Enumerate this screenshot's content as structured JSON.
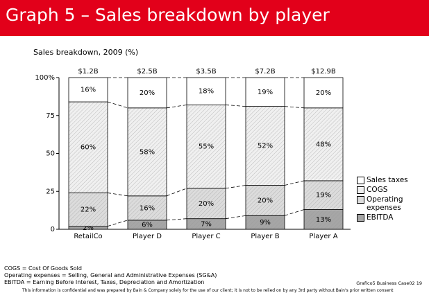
{
  "header": {
    "title": "Graph 5 – Sales breakdown by player"
  },
  "chart_data": {
    "type": "stacked_bar",
    "title": "Sales breakdown, 2009 (%)",
    "categories": [
      "RetailCo",
      "Player D",
      "Player C",
      "Player B",
      "Player A"
    ],
    "column_labels": [
      "$1.2B",
      "$2.5B",
      "$3.5B",
      "$7.2B",
      "$12.9B"
    ],
    "ylim": [
      0,
      100
    ],
    "yticks": [
      0,
      25,
      50,
      75,
      {
        "value": 100,
        "label": "100%"
      }
    ],
    "series": [
      {
        "name": "EBITDA",
        "color": "#a6a6a6",
        "values": [
          2,
          6,
          7,
          9,
          13
        ],
        "value_labels": [
          "2%",
          "6%",
          "7%",
          "9%",
          "13%"
        ]
      },
      {
        "name": "Operating expenses",
        "color": "#dcdcdc",
        "values": [
          22,
          16,
          20,
          20,
          19
        ],
        "value_labels": [
          "22%",
          "16%",
          "20%",
          "20%",
          "19%"
        ]
      },
      {
        "name": "COGS",
        "color": "#f0f0f0",
        "values": [
          60,
          58,
          55,
          52,
          48
        ],
        "value_labels": [
          "60%",
          "58%",
          "55%",
          "52%",
          "48%"
        ]
      },
      {
        "name": "Sales taxes",
        "color": "#ffffff",
        "values": [
          16,
          20,
          18,
          19,
          20
        ],
        "value_labels": [
          "16%",
          "20%",
          "18%",
          "19%",
          "20%"
        ]
      }
    ]
  },
  "footnotes": [
    "COGS = Cost Of Goods Sold",
    "Operating expenses = Selling, General and Administrative Expenses (SG&A)",
    "EBITDA = Earning Before Interest, Taxes, Depreciation and Amortization"
  ],
  "footer": {
    "source": "Grafico5 Business Case02 19",
    "disclaimer": "This information is confidential and was prepared by Bain & Company solely for the use of our client; it is not to be relied on by any 3rd party without Bain's prior written consent"
  }
}
